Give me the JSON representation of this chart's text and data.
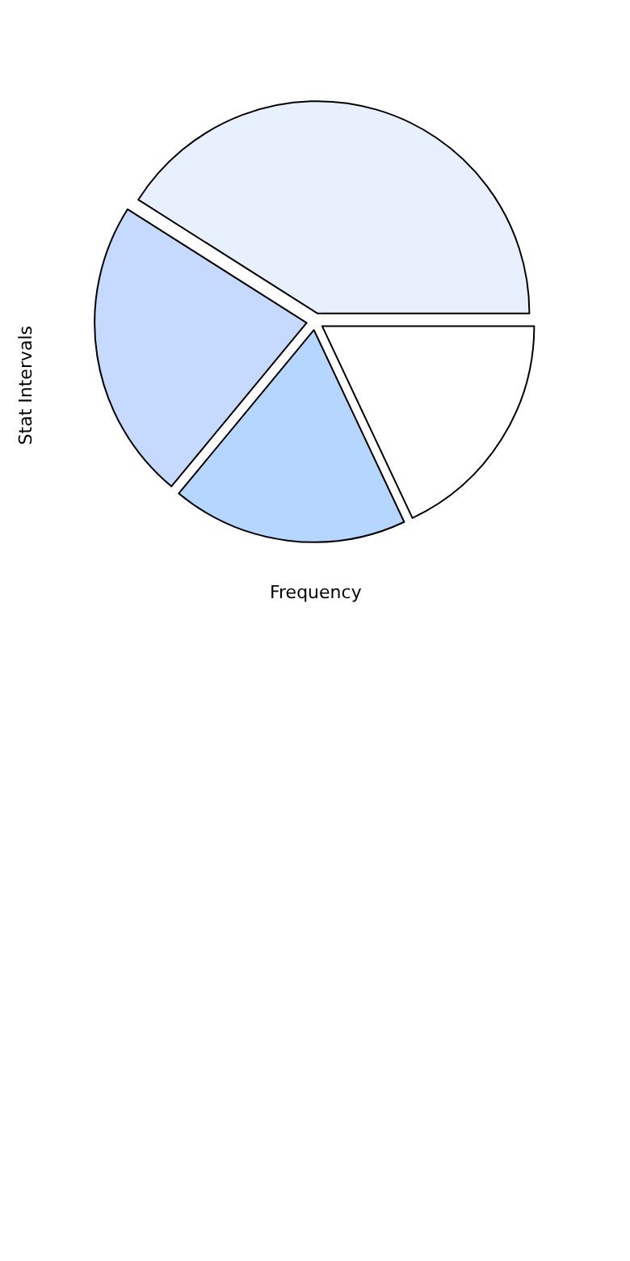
{
  "chart_data": {
    "type": "pie",
    "xlabel": "Frequency",
    "ylabel": "Stat Intervals",
    "categories": [
      null,
      null,
      null,
      null
    ],
    "values": [
      18,
      41,
      23,
      18
    ],
    "colors": [
      "#ffffff",
      "#e8f0fe",
      "#c6d9fe",
      "#b5d6ff"
    ]
  }
}
